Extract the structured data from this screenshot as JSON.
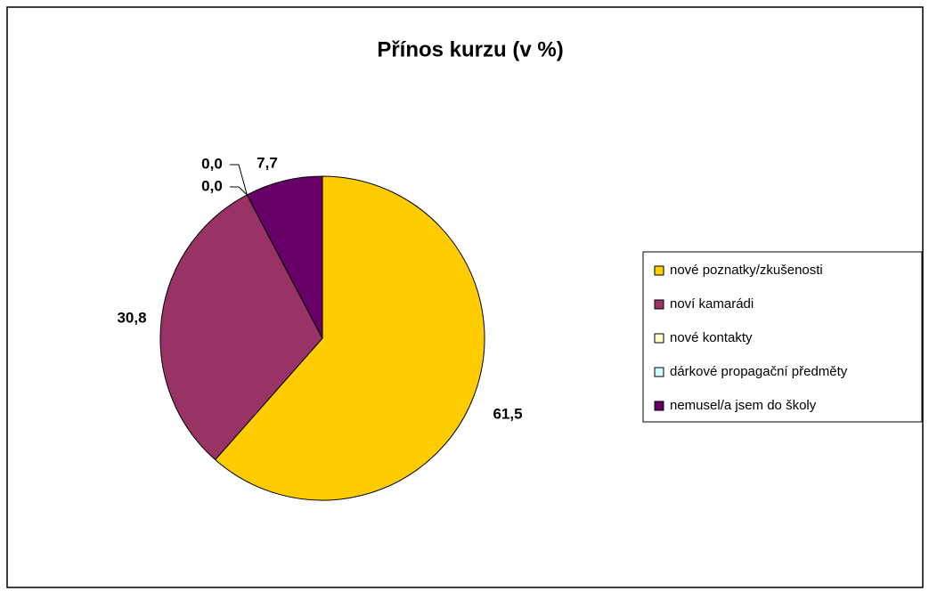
{
  "chart_data": {
    "type": "pie",
    "title": "Přínos kurzu (v %)",
    "categories": [
      "nové poznatky/zkušenosti",
      "noví kamarádi",
      "nové kontakty",
      "dárkové propagační předměty",
      "nemusel/a jsem do školy"
    ],
    "values": [
      61.5,
      30.8,
      0.0,
      0.0,
      7.7
    ],
    "value_labels": [
      "61,5",
      "30,8",
      "0,0",
      "0,0",
      "7,7"
    ],
    "colors": [
      "#ffcc00",
      "#993366",
      "#ffffcc",
      "#ccffff",
      "#660066"
    ],
    "legend": "right"
  }
}
